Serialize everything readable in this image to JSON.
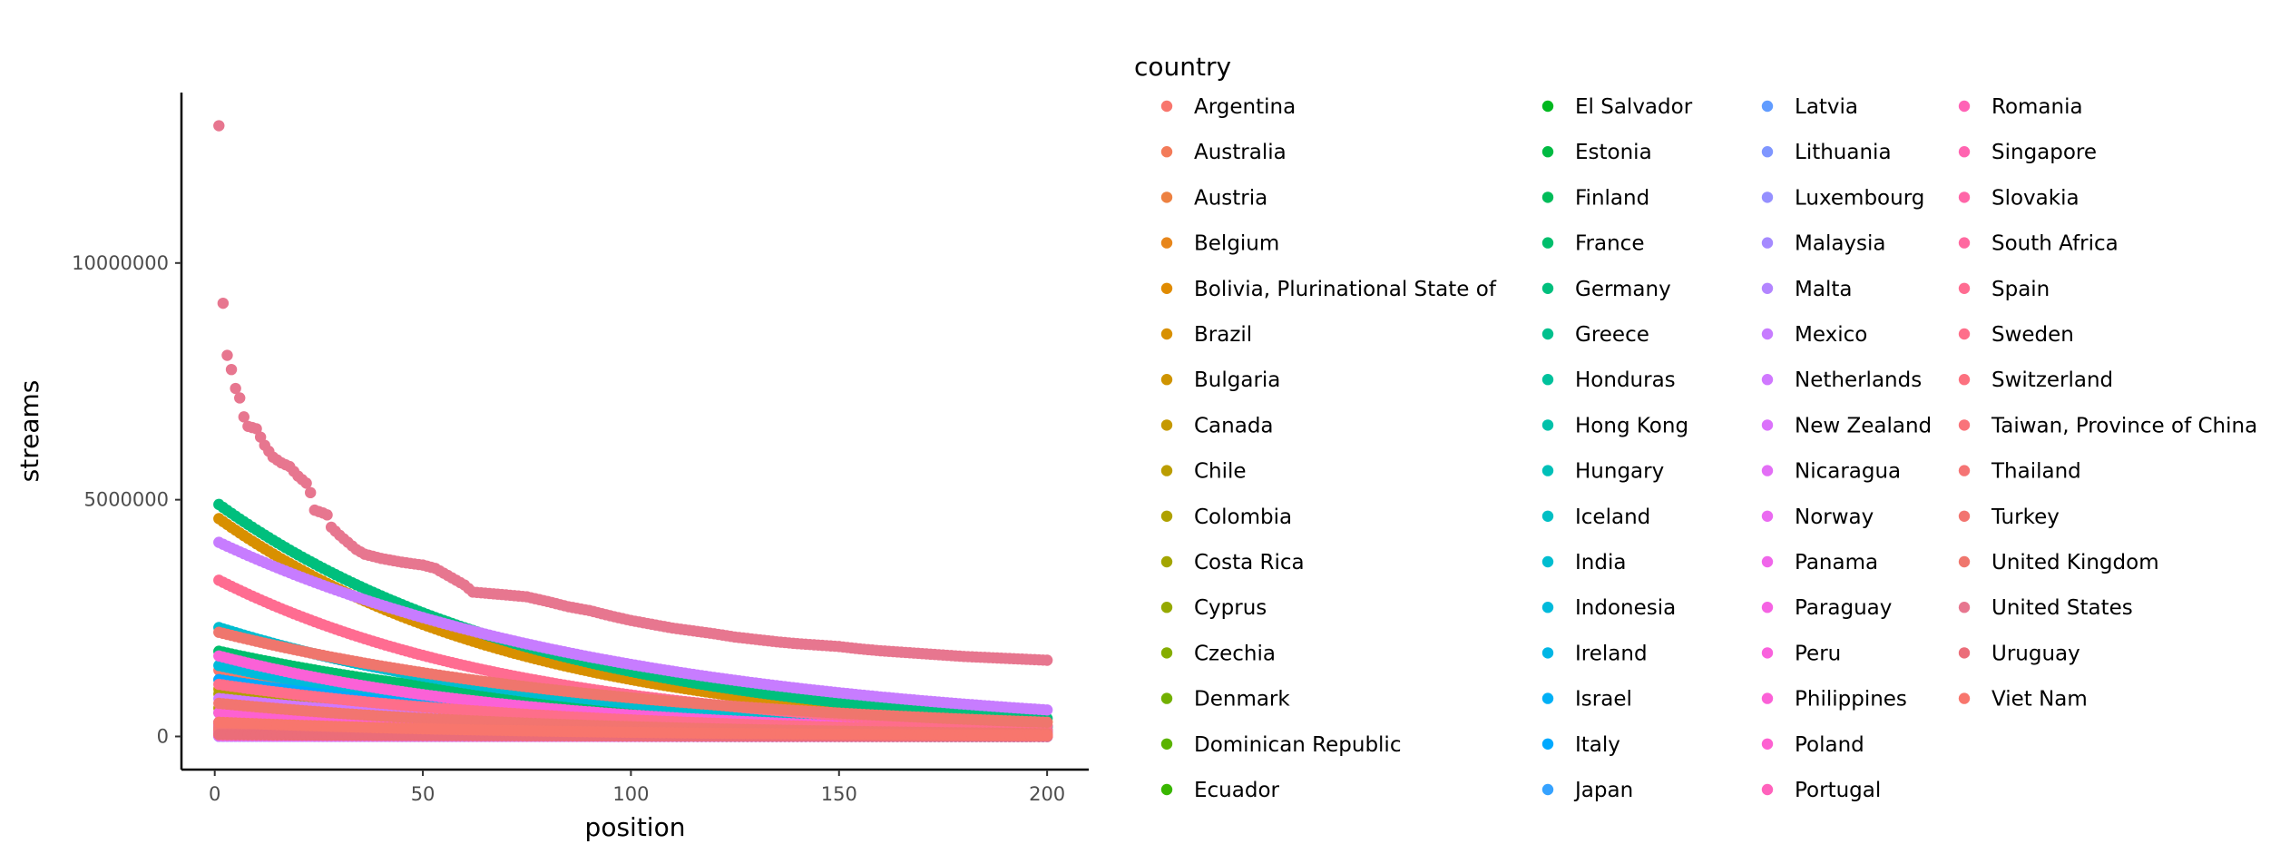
{
  "chart_data": {
    "type": "scatter",
    "xlabel": "position",
    "ylabel": "streams",
    "xlim": [
      -8,
      210
    ],
    "ylim": [
      -700000,
      13600000
    ],
    "x_ticks": [
      0,
      50,
      100,
      150,
      200
    ],
    "y_ticks": [
      0,
      5000000,
      10000000
    ],
    "x_tick_labels": [
      "0",
      "50",
      "100",
      "150",
      "200"
    ],
    "y_tick_labels": [
      "0",
      "5000000",
      "10000000"
    ],
    "grid": false,
    "legend_title": "country",
    "legend_position": "right",
    "x_range": [
      1,
      200
    ],
    "series": [
      {
        "name": "Argentina",
        "color": "#F8766D",
        "values": [
          [
            1,
            1400000
          ],
          [
            200,
            160000
          ]
        ]
      },
      {
        "name": "Australia",
        "color": "#F37B59",
        "values": [
          [
            1,
            1200000
          ],
          [
            200,
            220000
          ]
        ]
      },
      {
        "name": "Austria",
        "color": "#ED8141",
        "values": [
          [
            1,
            180000
          ],
          [
            200,
            12000
          ]
        ]
      },
      {
        "name": "Belgium",
        "color": "#E7861B",
        "values": [
          [
            1,
            250000
          ],
          [
            200,
            25000
          ]
        ]
      },
      {
        "name": "Bolivia, Plurinational State of",
        "color": "#E08B00",
        "values": [
          [
            1,
            25000
          ],
          [
            200,
            2000
          ]
        ]
      },
      {
        "name": "Brazil",
        "color": "#D89000",
        "values": [
          [
            1,
            4600000
          ],
          [
            200,
            310000
          ]
        ]
      },
      {
        "name": "Bulgaria",
        "color": "#CF9400",
        "values": [
          [
            1,
            20000
          ],
          [
            200,
            1500
          ]
        ]
      },
      {
        "name": "Canada",
        "color": "#C59900",
        "values": [
          [
            1,
            1000000
          ],
          [
            200,
            130000
          ]
        ]
      },
      {
        "name": "Chile",
        "color": "#BB9D00",
        "values": [
          [
            1,
            600000
          ],
          [
            200,
            60000
          ]
        ]
      },
      {
        "name": "Colombia",
        "color": "#AFA100",
        "values": [
          [
            1,
            900000
          ],
          [
            200,
            80000
          ]
        ]
      },
      {
        "name": "Costa Rica",
        "color": "#A3A500",
        "values": [
          [
            1,
            50000
          ],
          [
            200,
            4000
          ]
        ]
      },
      {
        "name": "Cyprus",
        "color": "#95A900",
        "values": [
          [
            1,
            8000
          ],
          [
            200,
            600
          ]
        ]
      },
      {
        "name": "Czechia",
        "color": "#85AD00",
        "values": [
          [
            1,
            120000
          ],
          [
            200,
            10000
          ]
        ]
      },
      {
        "name": "Denmark",
        "color": "#72B000",
        "values": [
          [
            1,
            300000
          ],
          [
            200,
            30000
          ]
        ]
      },
      {
        "name": "Dominican Republic",
        "color": "#5BB300",
        "values": [
          [
            1,
            80000
          ],
          [
            200,
            6000
          ]
        ]
      },
      {
        "name": "Ecuador",
        "color": "#39B600",
        "values": [
          [
            1,
            150000
          ],
          [
            200,
            12000
          ]
        ]
      },
      {
        "name": "El Salvador",
        "color": "#00B81F",
        "values": [
          [
            1,
            40000
          ],
          [
            200,
            3000
          ]
        ]
      },
      {
        "name": "Estonia",
        "color": "#00BA42",
        "values": [
          [
            1,
            10000
          ],
          [
            200,
            700
          ]
        ]
      },
      {
        "name": "Finland",
        "color": "#00BC59",
        "values": [
          [
            1,
            250000
          ],
          [
            200,
            22000
          ]
        ]
      },
      {
        "name": "France",
        "color": "#00BE6C",
        "values": [
          [
            1,
            1800000
          ],
          [
            200,
            210000
          ]
        ]
      },
      {
        "name": "Germany",
        "color": "#00BF7D",
        "values": [
          [
            1,
            4900000
          ],
          [
            200,
            380000
          ]
        ]
      },
      {
        "name": "Greece",
        "color": "#00C08D",
        "values": [
          [
            1,
            90000
          ],
          [
            200,
            8000
          ]
        ]
      },
      {
        "name": "Honduras",
        "color": "#00C19C",
        "values": [
          [
            1,
            40000
          ],
          [
            200,
            3000
          ]
        ]
      },
      {
        "name": "Hong Kong",
        "color": "#00C1AA",
        "values": [
          [
            1,
            70000
          ],
          [
            200,
            7000
          ]
        ]
      },
      {
        "name": "Hungary",
        "color": "#00C0B8",
        "values": [
          [
            1,
            80000
          ],
          [
            200,
            7000
          ]
        ]
      },
      {
        "name": "Iceland",
        "color": "#00BFC4",
        "values": [
          [
            1,
            12000
          ],
          [
            200,
            800
          ]
        ]
      },
      {
        "name": "India",
        "color": "#00BDD0",
        "values": [
          [
            1,
            2300000
          ],
          [
            200,
            210000
          ]
        ]
      },
      {
        "name": "Indonesia",
        "color": "#00BADB",
        "values": [
          [
            1,
            1500000
          ],
          [
            200,
            120000
          ]
        ]
      },
      {
        "name": "Ireland",
        "color": "#00B6E5",
        "values": [
          [
            1,
            220000
          ],
          [
            200,
            20000
          ]
        ]
      },
      {
        "name": "Israel",
        "color": "#00B0F6",
        "values": [
          [
            1,
            110000
          ],
          [
            200,
            9000
          ]
        ]
      },
      {
        "name": "Italy",
        "color": "#00A9FF",
        "values": [
          [
            1,
            1200000
          ],
          [
            200,
            110000
          ]
        ]
      },
      {
        "name": "Japan",
        "color": "#35A2FF",
        "values": [
          [
            1,
            500000
          ],
          [
            200,
            70000
          ]
        ]
      },
      {
        "name": "Latvia",
        "color": "#619CFF",
        "values": [
          [
            1,
            10000
          ],
          [
            200,
            700
          ]
        ]
      },
      {
        "name": "Lithuania",
        "color": "#7F96FF",
        "values": [
          [
            1,
            12000
          ],
          [
            200,
            900
          ]
        ]
      },
      {
        "name": "Luxembourg",
        "color": "#9590FF",
        "values": [
          [
            1,
            3000
          ],
          [
            200,
            300
          ]
        ]
      },
      {
        "name": "Malaysia",
        "color": "#A58AFF",
        "values": [
          [
            1,
            220000
          ],
          [
            200,
            20000
          ]
        ]
      },
      {
        "name": "Malta",
        "color": "#B385FF",
        "values": [
          [
            1,
            4000
          ],
          [
            200,
            300
          ]
        ]
      },
      {
        "name": "Mexico",
        "color": "#C77CFF",
        "values": [
          [
            1,
            4100000
          ],
          [
            200,
            560000
          ]
        ]
      },
      {
        "name": "Netherlands",
        "color": "#D078FF",
        "values": [
          [
            1,
            800000
          ],
          [
            200,
            70000
          ]
        ]
      },
      {
        "name": "New Zealand",
        "color": "#DB72FB",
        "values": [
          [
            1,
            150000
          ],
          [
            200,
            13000
          ]
        ]
      },
      {
        "name": "Nicaragua",
        "color": "#E36EF6",
        "values": [
          [
            1,
            12000
          ],
          [
            200,
            900
          ]
        ]
      },
      {
        "name": "Norway",
        "color": "#EA6AF1",
        "values": [
          [
            1,
            300000
          ],
          [
            200,
            25000
          ]
        ]
      },
      {
        "name": "Panama",
        "color": "#F066EA",
        "values": [
          [
            1,
            30000
          ],
          [
            200,
            2500
          ]
        ]
      },
      {
        "name": "Paraguay",
        "color": "#F563E3",
        "values": [
          [
            1,
            25000
          ],
          [
            200,
            2000
          ]
        ]
      },
      {
        "name": "Peru",
        "color": "#F962DD",
        "values": [
          [
            1,
            300000
          ],
          [
            200,
            30000
          ]
        ]
      },
      {
        "name": "Philippines",
        "color": "#FB61D7",
        "values": [
          [
            1,
            1700000
          ],
          [
            200,
            120000
          ]
        ]
      },
      {
        "name": "Poland",
        "color": "#FD61D1",
        "values": [
          [
            1,
            500000
          ],
          [
            200,
            50000
          ]
        ]
      },
      {
        "name": "Portugal",
        "color": "#FF62BC",
        "values": [
          [
            1,
            250000
          ],
          [
            200,
            25000
          ]
        ]
      },
      {
        "name": "Romania",
        "color": "#FF63B6",
        "values": [
          [
            1,
            50000
          ],
          [
            200,
            5000
          ]
        ]
      },
      {
        "name": "Singapore",
        "color": "#FF64B0",
        "values": [
          [
            1,
            80000
          ],
          [
            200,
            7000
          ]
        ]
      },
      {
        "name": "Slovakia",
        "color": "#FF66A8",
        "values": [
          [
            1,
            40000
          ],
          [
            200,
            3000
          ]
        ]
      },
      {
        "name": "South Africa",
        "color": "#FF689F",
        "values": [
          [
            1,
            100000
          ],
          [
            200,
            9000
          ]
        ]
      },
      {
        "name": "Spain",
        "color": "#FF6C91",
        "values": [
          [
            1,
            3300000
          ],
          [
            200,
            230000
          ]
        ]
      },
      {
        "name": "Sweden",
        "color": "#FE6E8A",
        "values": [
          [
            1,
            1100000
          ],
          [
            200,
            110000
          ]
        ]
      },
      {
        "name": "Switzerland",
        "color": "#FC717F",
        "values": [
          [
            1,
            150000
          ],
          [
            200,
            12000
          ]
        ]
      },
      {
        "name": "Taiwan, Province of China",
        "color": "#F9737A",
        "values": [
          [
            1,
            200000
          ],
          [
            200,
            20000
          ]
        ]
      },
      {
        "name": "Thailand",
        "color": "#F57474",
        "values": [
          [
            1,
            150000
          ],
          [
            200,
            15000
          ]
        ]
      },
      {
        "name": "Turkey",
        "color": "#F27570",
        "values": [
          [
            1,
            700000
          ],
          [
            200,
            60000
          ]
        ]
      },
      {
        "name": "United Kingdom",
        "color": "#EF766D",
        "values": [
          [
            1,
            2200000
          ],
          [
            200,
            300000
          ]
        ]
      },
      {
        "name": "United States",
        "color": "#E7768F",
        "values": [
          [
            1,
            12900000
          ],
          [
            2,
            9150000
          ],
          [
            3,
            8050000
          ],
          [
            4,
            7750000
          ],
          [
            5,
            7350000
          ],
          [
            6,
            7150000
          ],
          [
            7,
            6750000
          ],
          [
            8,
            6550000
          ],
          [
            10,
            6500000
          ],
          [
            12,
            6150000
          ],
          [
            14,
            5900000
          ],
          [
            16,
            5780000
          ],
          [
            18,
            5700000
          ],
          [
            20,
            5500000
          ],
          [
            22,
            5350000
          ],
          [
            23,
            5150000
          ],
          [
            24,
            4780000
          ],
          [
            26,
            4720000
          ],
          [
            27,
            4680000
          ],
          [
            28,
            4420000
          ],
          [
            30,
            4250000
          ],
          [
            32,
            4100000
          ],
          [
            34,
            3950000
          ],
          [
            36,
            3850000
          ],
          [
            40,
            3760000
          ],
          [
            45,
            3680000
          ],
          [
            50,
            3620000
          ],
          [
            53,
            3550000
          ],
          [
            56,
            3400000
          ],
          [
            58,
            3300000
          ],
          [
            60,
            3200000
          ],
          [
            62,
            3050000
          ],
          [
            66,
            3020000
          ],
          [
            70,
            2990000
          ],
          [
            75,
            2950000
          ],
          [
            80,
            2850000
          ],
          [
            85,
            2740000
          ],
          [
            90,
            2660000
          ],
          [
            95,
            2550000
          ],
          [
            100,
            2450000
          ],
          [
            105,
            2370000
          ],
          [
            110,
            2290000
          ],
          [
            115,
            2230000
          ],
          [
            120,
            2170000
          ],
          [
            125,
            2100000
          ],
          [
            130,
            2050000
          ],
          [
            135,
            2000000
          ],
          [
            140,
            1960000
          ],
          [
            145,
            1930000
          ],
          [
            150,
            1900000
          ],
          [
            155,
            1850000
          ],
          [
            160,
            1810000
          ],
          [
            165,
            1780000
          ],
          [
            170,
            1750000
          ],
          [
            175,
            1720000
          ],
          [
            180,
            1690000
          ],
          [
            185,
            1670000
          ],
          [
            190,
            1650000
          ],
          [
            195,
            1630000
          ],
          [
            200,
            1610000
          ]
        ]
      },
      {
        "name": "Uruguay",
        "color": "#EB6D79",
        "values": [
          [
            1,
            40000
          ],
          [
            200,
            3000
          ]
        ]
      },
      {
        "name": "Viet Nam",
        "color": "#F8766D",
        "values": [
          [
            1,
            300000
          ],
          [
            200,
            25000
          ]
        ]
      }
    ]
  }
}
